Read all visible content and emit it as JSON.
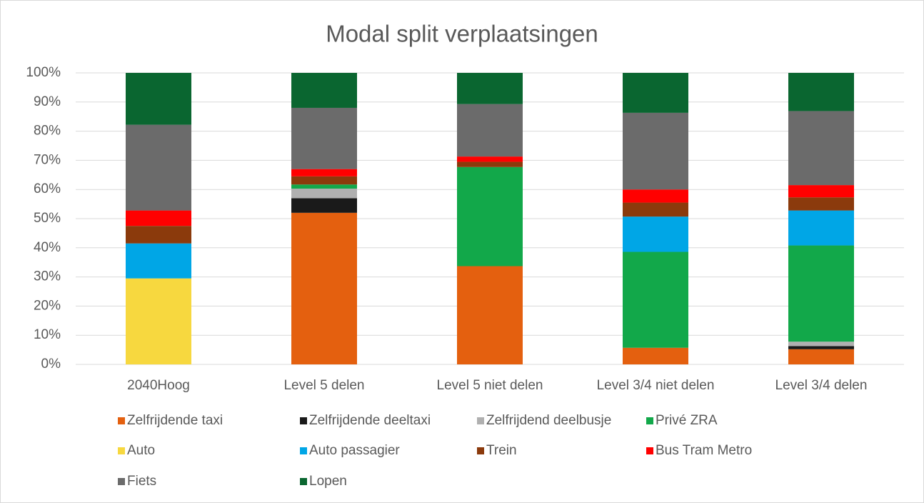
{
  "chart_data": {
    "type": "stacked_bar",
    "title": "Modal split verplaatsingen",
    "categories": [
      "2040Hoog",
      "Level 5 delen",
      "Level 5 niet delen",
      "Level 3/4 niet delen",
      "Level 3/4 delen"
    ],
    "series": [
      {
        "name": "Zelfrijdende taxi",
        "color": "#e4600f",
        "values": [
          0,
          52,
          33.7,
          5.7,
          5.2
        ]
      },
      {
        "name": "Zelfrijdende deeltaxi",
        "color": "#1a1a1a",
        "values": [
          0,
          5,
          0,
          0,
          1.1
        ]
      },
      {
        "name": "Zelfrijdend deelbusje",
        "color": "#b0b0b0",
        "values": [
          0,
          3.3,
          0,
          0,
          1.5
        ]
      },
      {
        "name": "Privé ZRA",
        "color": "#12a84a",
        "values": [
          0,
          1.4,
          34,
          32.9,
          33
        ]
      },
      {
        "name": "Auto",
        "color": "#f7d83f",
        "values": [
          29.5,
          0,
          0,
          0,
          0
        ]
      },
      {
        "name": "Auto passagier",
        "color": "#00a6e6",
        "values": [
          12,
          0,
          0,
          12.1,
          12
        ]
      },
      {
        "name": "Trein",
        "color": "#8b3a0c",
        "values": [
          6,
          2.8,
          1.8,
          4.8,
          4.5
        ]
      },
      {
        "name": "Bus Tram Metro",
        "color": "#ff0000",
        "values": [
          5.3,
          2.5,
          1.8,
          4.5,
          4.2
        ]
      },
      {
        "name": "Fiets",
        "color": "#6b6b6b",
        "values": [
          29.4,
          21,
          18,
          26.3,
          25.4
        ]
      },
      {
        "name": "Lopen",
        "color": "#0a6630",
        "values": [
          17.8,
          12,
          10.7,
          13.7,
          13.1
        ]
      }
    ],
    "ylim": [
      0,
      100
    ],
    "yticks": [
      {
        "value": 0,
        "label": "0%"
      },
      {
        "value": 10,
        "label": "10%"
      },
      {
        "value": 20,
        "label": "20%"
      },
      {
        "value": 30,
        "label": "30%"
      },
      {
        "value": 40,
        "label": "40%"
      },
      {
        "value": 50,
        "label": "50%"
      },
      {
        "value": 60,
        "label": "60%"
      },
      {
        "value": 70,
        "label": "70%"
      },
      {
        "value": 80,
        "label": "80%"
      },
      {
        "value": 90,
        "label": "90%"
      },
      {
        "value": 100,
        "label": "100%"
      }
    ],
    "grid": true,
    "legend": "bottom"
  }
}
